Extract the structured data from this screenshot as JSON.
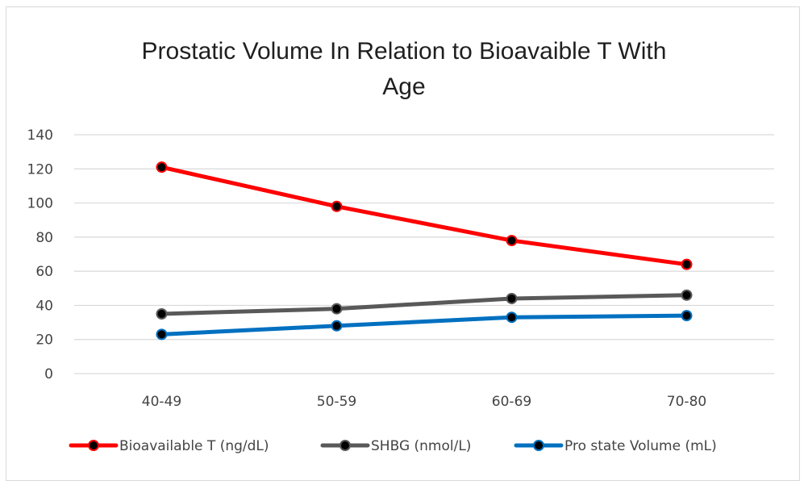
{
  "chart_data": {
    "type": "line",
    "title": "Prostatic Volume In Relation to Bioavaible T With Age",
    "title_lines": [
      "Prostatic Volume In Relation to Bioavaible T With",
      "Age"
    ],
    "xlabel": "",
    "ylabel": "",
    "categories": [
      "40-49",
      "50-59",
      "60-69",
      "70-80"
    ],
    "ylim": [
      0,
      140
    ],
    "yticks": [
      0,
      20,
      40,
      60,
      80,
      100,
      120,
      140
    ],
    "grid": true,
    "legend_position": "bottom",
    "series": [
      {
        "name": "Bioavailable T (ng/dL)",
        "values": [
          121,
          98,
          78,
          64
        ],
        "color": "#ff0000"
      },
      {
        "name": "SHBG (nmol/L)",
        "values": [
          35,
          38,
          44,
          46
        ],
        "color": "#595959"
      },
      {
        "name": "Pro state Volume (mL)",
        "values": [
          23,
          28,
          33,
          34
        ],
        "color": "#0070c0"
      }
    ]
  }
}
